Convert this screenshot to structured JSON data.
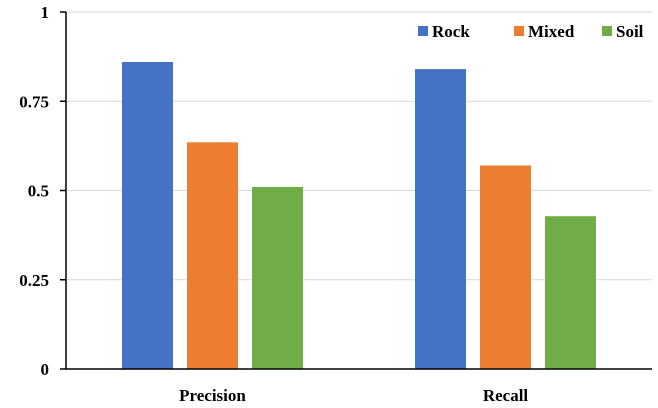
{
  "chart_data": {
    "type": "bar",
    "categories": [
      "Precision",
      "Recall"
    ],
    "series": [
      {
        "name": "Rock",
        "values": [
          0.86,
          0.84
        ],
        "color": "#4472C4"
      },
      {
        "name": "Mixed",
        "values": [
          0.635,
          0.57
        ],
        "color": "#ED7D31"
      },
      {
        "name": "Soil",
        "values": [
          0.51,
          0.428
        ],
        "color": "#70AD47"
      }
    ],
    "title": "",
    "xlabel": "",
    "ylabel": "",
    "ylim": [
      0,
      1
    ],
    "yticks": [
      0,
      0.25,
      0.5,
      0.75,
      1
    ],
    "ytick_labels": [
      "0",
      "0.25",
      "0.5",
      "0.75",
      "1"
    ],
    "grid": "horizontal",
    "legend_position": "top-right",
    "colors": {
      "gridline": "#D9D9D9",
      "axis": "#000000"
    }
  }
}
